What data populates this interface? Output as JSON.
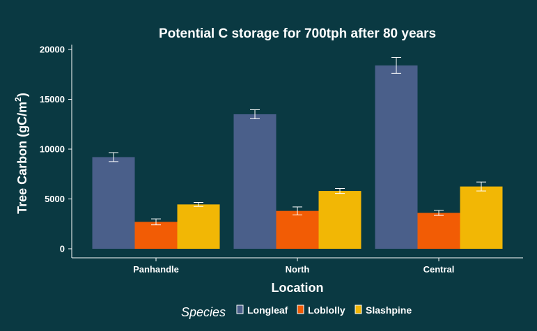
{
  "chart_data": {
    "type": "bar",
    "title": "Potential C storage for 700tph after 80 years",
    "xlabel": "Location",
    "ylabel_main": "Tree Carbon (gC/m",
    "ylabel_sup": "2",
    "ylabel_end": ")",
    "categories": [
      "Panhandle",
      "North",
      "Central"
    ],
    "ylim": [
      0,
      20000
    ],
    "yticks": [
      "0",
      "5000",
      "10000",
      "15000",
      "20000"
    ],
    "ytick_values": [
      0,
      5000,
      10000,
      15000,
      20000
    ],
    "grid": false,
    "legend": {
      "title": "Species",
      "position": "bottom"
    },
    "series": [
      {
        "name": "Longleaf",
        "color": "#4a5f8a",
        "values": [
          9200,
          13500,
          18400
        ],
        "errors": [
          450,
          450,
          800
        ]
      },
      {
        "name": "Loblolly",
        "color": "#f25c05",
        "values": [
          2700,
          3800,
          3600
        ],
        "errors": [
          300,
          400,
          250
        ]
      },
      {
        "name": "Slashpine",
        "color": "#f2b705",
        "values": [
          4450,
          5800,
          6250
        ],
        "errors": [
          200,
          250,
          450
        ]
      }
    ]
  }
}
